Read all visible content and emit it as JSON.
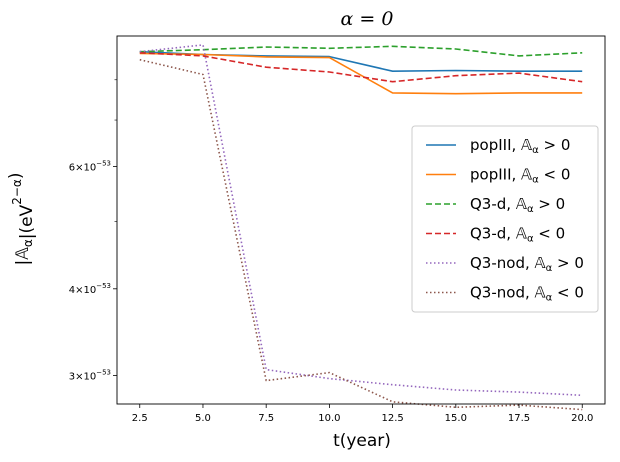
{
  "chart_data": {
    "type": "line",
    "title": "α = 0",
    "xlabel": "t(year)",
    "ylabel": "|𝔸α|(eV2−α)",
    "yscale": "log",
    "x": [
      2.5,
      5.0,
      7.5,
      10.0,
      12.5,
      15.0,
      17.5,
      20.0
    ],
    "xlim": [
      1.6,
      20.9
    ],
    "ylim": [
      2.73e-53,
      9.25e-53
    ],
    "xticks": [
      "2.5",
      "5.0",
      "7.5",
      "10.0",
      "12.5",
      "15.0",
      "17.5",
      "20.0"
    ],
    "yticks": [
      {
        "value": 3e-53,
        "mantissa": "3",
        "exponent": "−53"
      },
      {
        "value": 4e-53,
        "mantissa": "4",
        "exponent": "−53"
      },
      {
        "value": 6e-53,
        "mantissa": "6",
        "exponent": "−53"
      }
    ],
    "minor_yticks": [
      5e-53,
      7e-53,
      8e-53
    ],
    "legend_position": "center-right",
    "series": [
      {
        "name": "popIII, 𝔸α > 0",
        "label_main": "popIII, ",
        "label_sym": "𝔸",
        "label_sub": "α",
        "label_rel": " > 0",
        "color": "#1f77b4",
        "dash": "solid",
        "values": [
          8.78e-53,
          8.7e-53,
          8.66e-53,
          8.64e-53,
          8.23e-53,
          8.25e-53,
          8.23e-53,
          8.23e-53
        ]
      },
      {
        "name": "popIII, 𝔸α < 0",
        "label_main": "popIII, ",
        "label_sym": "𝔸",
        "label_sub": "α",
        "label_rel": " < 0",
        "color": "#ff7f0e",
        "dash": "solid",
        "values": [
          8.73e-53,
          8.7e-53,
          8.63e-53,
          8.61e-53,
          7.66e-53,
          7.64e-53,
          7.66e-53,
          7.66e-53
        ]
      },
      {
        "name": "Q3-d, 𝔸α > 0",
        "label_main": "Q3-d, ",
        "label_sym": "𝔸",
        "label_sub": "α",
        "label_rel": " > 0",
        "color": "#2ca02c",
        "dash": "dashed",
        "values": [
          8.78e-53,
          8.84e-53,
          8.92e-53,
          8.88e-53,
          8.94e-53,
          8.86e-53,
          8.66e-53,
          8.75e-53
        ]
      },
      {
        "name": "Q3-d, 𝔸α < 0",
        "label_main": "Q3-d, ",
        "label_sym": "𝔸",
        "label_sub": "α",
        "label_rel": " < 0",
        "color": "#d62728",
        "dash": "dashed",
        "values": [
          8.75e-53,
          8.66e-53,
          8.34e-53,
          8.21e-53,
          7.95e-53,
          8.11e-53,
          8.18e-53,
          7.95e-53
        ]
      },
      {
        "name": "Q3-nod, 𝔸α > 0",
        "label_main": "Q3-nod, ",
        "label_sym": "𝔸",
        "label_sub": "α",
        "label_rel": " > 0",
        "color": "#9467bd",
        "dash": "dotted",
        "values": [
          8.78e-53,
          8.98e-53,
          3.06e-53,
          2.97e-53,
          2.91e-53,
          2.86e-53,
          2.84e-53,
          2.81e-53
        ]
      },
      {
        "name": "Q3-nod, 𝔸α < 0",
        "label_main": "Q3-nod, ",
        "label_sym": "𝔸",
        "label_sub": "α",
        "label_rel": " < 0",
        "color": "#8c564b",
        "dash": "dotted",
        "values": [
          8.55e-53,
          8.14e-53,
          2.95e-53,
          3.03e-53,
          2.75e-53,
          2.7e-53,
          2.72e-53,
          2.68e-53
        ]
      }
    ]
  }
}
